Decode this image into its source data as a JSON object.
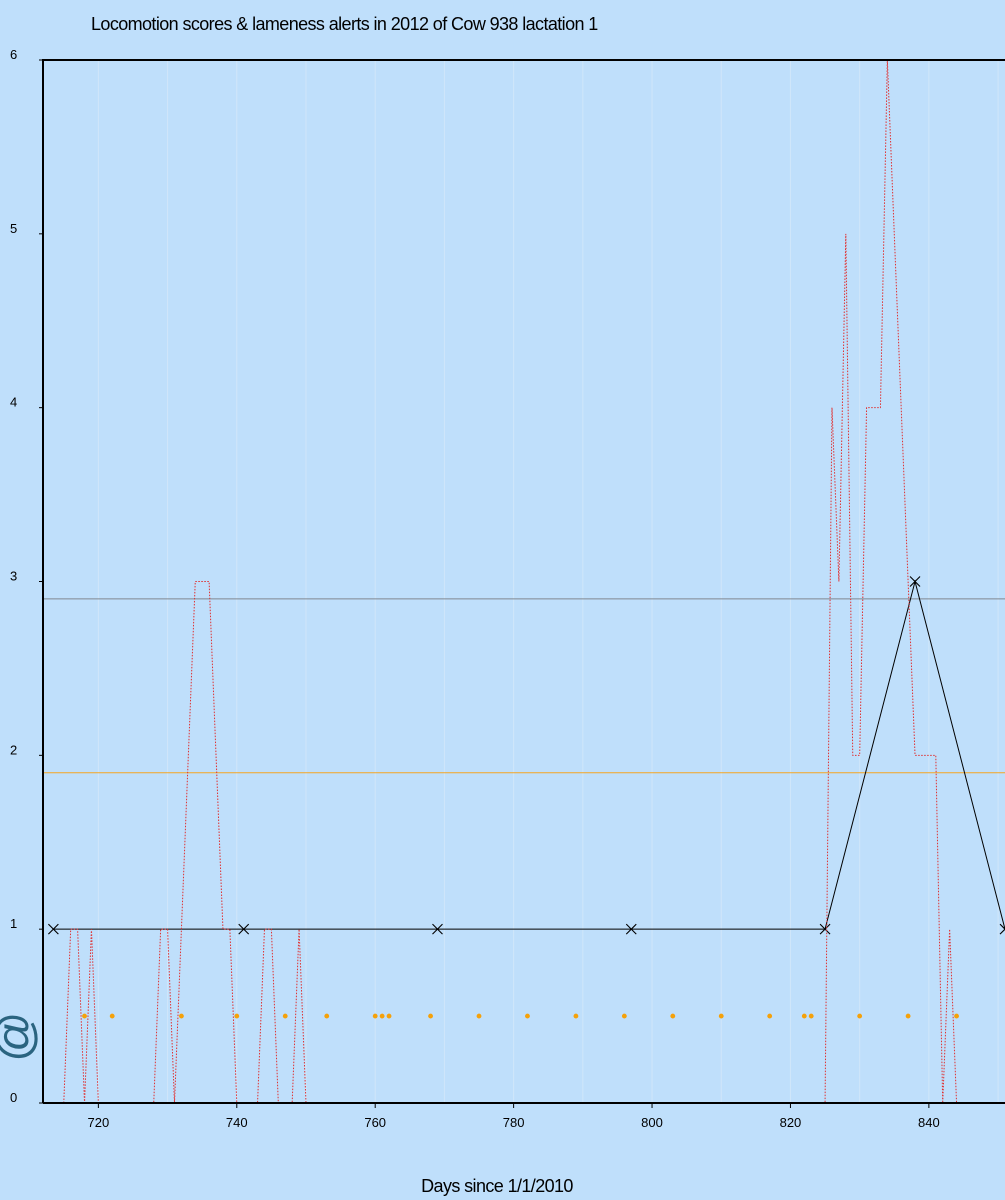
{
  "chart_data": {
    "type": "line",
    "title": "Locomotion scores & lameness alerts in 2012 of Cow 938 lactation 1",
    "xlabel": "Days since 1/1/2010",
    "ylabel": "",
    "xlim": [
      712,
      851
    ],
    "ylim": [
      0,
      6
    ],
    "x_ticks": [
      720,
      740,
      760,
      780,
      800,
      820,
      840
    ],
    "y_ticks": [
      0,
      1,
      2,
      3,
      4,
      5,
      6
    ],
    "grid": true,
    "stray_glyph": "@",
    "thresholds": [
      {
        "value": 2.9,
        "color": "#808890"
      },
      {
        "value": 1.9,
        "color": "#f5a623"
      }
    ],
    "series": [
      {
        "style": "solid-with-x-markers",
        "color": "#000000",
        "x": [
          713.5,
          741,
          769,
          797,
          825,
          838,
          851
        ],
        "y": [
          1,
          1,
          1,
          1,
          1,
          3,
          1
        ]
      },
      {
        "style": "dotted-step",
        "color": "#e03030",
        "x": [
          715,
          716,
          717,
          718,
          719,
          720,
          728,
          729,
          730,
          731,
          732,
          733,
          734,
          736,
          737,
          738,
          739,
          740,
          743,
          744,
          745,
          746,
          748,
          749,
          750,
          825,
          826,
          827,
          828,
          829,
          830,
          831,
          832,
          833,
          834,
          835,
          837,
          838,
          840,
          841,
          842,
          843,
          844
        ],
        "y": [
          0,
          1,
          1,
          0,
          1,
          0,
          0,
          1,
          1,
          0,
          1,
          2,
          3,
          3,
          2,
          1,
          1,
          0,
          0,
          1,
          1,
          0,
          0,
          1,
          0,
          0,
          4,
          3,
          5,
          2,
          2,
          4,
          4,
          4,
          6,
          5,
          3,
          2,
          2,
          2,
          0,
          1,
          0
        ]
      },
      {
        "style": "dots",
        "color": "#f5a10a",
        "x": [
          718,
          722,
          732,
          740,
          747,
          753,
          760,
          761,
          762,
          768,
          775,
          782,
          789,
          796,
          803,
          810,
          817,
          822,
          823,
          830,
          837,
          844
        ],
        "y": [
          0.5,
          0.5,
          0.5,
          0.5,
          0.5,
          0.5,
          0.5,
          0.5,
          0.5,
          0.5,
          0.5,
          0.5,
          0.5,
          0.5,
          0.5,
          0.5,
          0.5,
          0.5,
          0.5,
          0.5,
          0.5,
          0.5
        ]
      }
    ]
  }
}
